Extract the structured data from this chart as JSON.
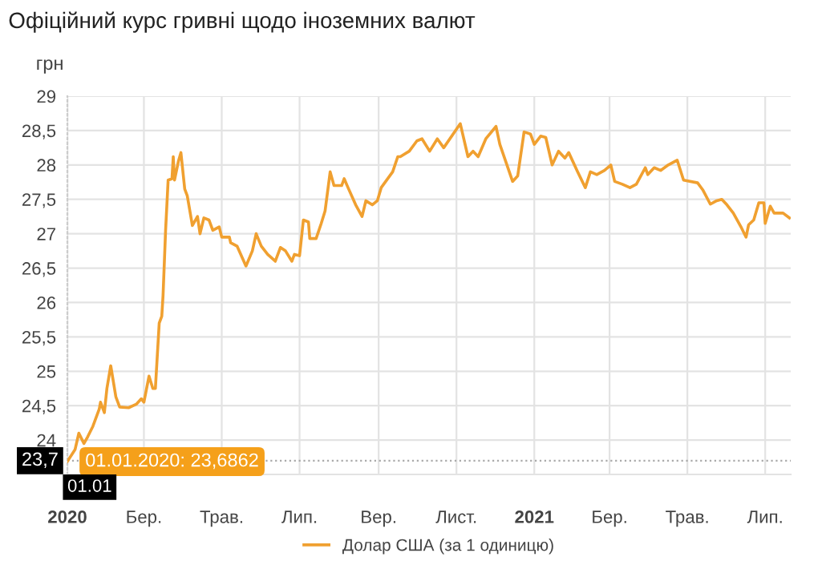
{
  "chart_data": {
    "type": "line",
    "title": "Офіційний курс гривні щодо іноземних валют",
    "ylabel": "грн",
    "x": [
      "2020-01-01",
      "2020-01-07",
      "2020-01-10",
      "2020-01-14",
      "2020-01-17",
      "2020-01-21",
      "2020-01-26",
      "2020-01-27",
      "2020-01-30",
      "2020-02-01",
      "2020-02-04",
      "2020-02-08",
      "2020-02-11",
      "2020-02-18",
      "2020-02-24",
      "2020-02-28",
      "2020-03-01",
      "2020-03-05",
      "2020-03-08",
      "2020-03-10",
      "2020-03-13",
      "2020-03-15",
      "2020-03-16",
      "2020-03-18",
      "2020-03-20",
      "2020-03-23",
      "2020-03-24",
      "2020-03-25",
      "2020-03-28",
      "2020-03-30",
      "2020-04-02",
      "2020-04-04",
      "2020-04-08",
      "2020-04-12",
      "2020-04-14",
      "2020-04-17",
      "2020-04-21",
      "2020-04-24",
      "2020-04-29",
      "2020-05-01",
      "2020-05-07",
      "2020-05-08",
      "2020-05-13",
      "2020-05-20",
      "2020-05-25",
      "2020-05-28",
      "2020-06-01",
      "2020-06-06",
      "2020-06-12",
      "2020-06-16",
      "2020-06-20",
      "2020-06-25",
      "2020-06-27",
      "2020-07-01",
      "2020-07-04",
      "2020-07-08",
      "2020-07-09",
      "2020-07-14",
      "2020-07-18",
      "2020-07-21",
      "2020-07-25",
      "2020-07-28",
      "2020-08-03",
      "2020-08-05",
      "2020-08-08",
      "2020-08-14",
      "2020-08-19",
      "2020-08-22",
      "2020-08-27",
      "2020-08-31",
      "2020-09-03",
      "2020-09-12",
      "2020-09-16",
      "2020-09-18",
      "2020-09-25",
      "2020-10-01",
      "2020-10-05",
      "2020-10-11",
      "2020-10-17",
      "2020-10-22",
      "2020-11-04",
      "2020-11-10",
      "2020-11-14",
      "2020-11-18",
      "2020-11-24",
      "2020-12-02",
      "2020-12-05",
      "2020-12-15",
      "2020-12-19",
      "2020-12-24",
      "2020-12-29",
      "2021-01-01",
      "2021-01-06",
      "2021-01-10",
      "2021-01-15",
      "2021-01-20",
      "2021-01-25",
      "2021-01-28",
      "2021-02-04",
      "2021-02-10",
      "2021-02-14",
      "2021-02-19",
      "2021-02-25",
      "2021-03-02",
      "2021-03-05",
      "2021-03-11",
      "2021-03-17",
      "2021-03-22",
      "2021-03-29",
      "2021-03-31",
      "2021-04-05",
      "2021-04-10",
      "2021-04-16",
      "2021-04-23",
      "2021-04-28",
      "2021-05-09",
      "2021-05-13",
      "2021-05-19",
      "2021-05-24",
      "2021-05-28",
      "2021-06-01",
      "2021-06-06",
      "2021-06-12",
      "2021-06-16",
      "2021-06-18",
      "2021-06-22",
      "2021-06-26",
      "2021-06-30",
      "2021-07-01",
      "2021-07-05",
      "2021-07-08",
      "2021-07-15",
      "2021-07-20"
    ],
    "series": [
      {
        "name": "Долар США (за 1 одиницю)",
        "color": "#f0a030",
        "values": [
          23.69,
          23.86,
          24.1,
          23.95,
          24.05,
          24.2,
          24.45,
          24.55,
          24.4,
          24.75,
          25.08,
          24.63,
          24.48,
          24.47,
          24.52,
          24.6,
          24.55,
          24.93,
          24.75,
          24.75,
          25.7,
          25.8,
          26.1,
          27.05,
          27.78,
          27.8,
          28.12,
          27.78,
          28.05,
          28.18,
          27.65,
          27.55,
          27.12,
          27.25,
          27.0,
          27.23,
          27.2,
          27.05,
          27.1,
          26.95,
          26.95,
          26.87,
          26.82,
          26.53,
          26.75,
          27.0,
          26.82,
          26.7,
          26.6,
          26.8,
          26.75,
          26.6,
          26.7,
          26.68,
          27.2,
          27.17,
          26.93,
          26.93,
          27.15,
          27.33,
          27.9,
          27.7,
          27.7,
          27.8,
          27.67,
          27.42,
          27.25,
          27.48,
          27.42,
          27.48,
          27.67,
          27.9,
          28.12,
          28.12,
          28.2,
          28.35,
          28.38,
          28.2,
          28.38,
          28.25,
          28.6,
          28.12,
          28.2,
          28.12,
          28.38,
          28.56,
          28.3,
          27.76,
          27.84,
          28.48,
          28.45,
          28.3,
          28.42,
          28.4,
          28.0,
          28.2,
          28.1,
          28.18,
          27.9,
          27.67,
          27.9,
          27.86,
          27.92,
          28.0,
          27.76,
          27.72,
          27.67,
          27.72,
          27.96,
          27.86,
          27.96,
          27.92,
          28.0,
          28.07,
          27.78,
          27.74,
          27.64,
          27.43,
          27.48,
          27.5,
          27.42,
          27.3,
          27.1,
          26.95,
          27.13,
          27.2,
          27.45,
          27.45,
          27.15,
          27.4,
          27.3,
          27.3,
          27.23
        ]
      }
    ],
    "xlim": [
      "2020-01-01",
      "2021-07-21"
    ],
    "xticks": [
      {
        "value": "2020-01-01",
        "label": "2020"
      },
      {
        "value": "2020-03-01",
        "label": "Бер."
      },
      {
        "value": "2020-05-01",
        "label": "Трав."
      },
      {
        "value": "2020-07-01",
        "label": "Лип."
      },
      {
        "value": "2020-09-01",
        "label": "Вер."
      },
      {
        "value": "2020-11-01",
        "label": "Лист."
      },
      {
        "value": "2021-01-01",
        "label": "2021"
      },
      {
        "value": "2021-03-01",
        "label": "Бер."
      },
      {
        "value": "2021-05-01",
        "label": "Трав."
      },
      {
        "value": "2021-07-01",
        "label": "Лип."
      }
    ],
    "ylim": [
      23.5,
      29
    ],
    "yticks": [
      24,
      {
        "value": 24.5,
        "label": "24,5"
      },
      25,
      {
        "value": 25.5,
        "label": "25,5"
      },
      26,
      {
        "value": 26.5,
        "label": "26,5"
      },
      27,
      {
        "value": 27.5,
        "label": "27,5"
      },
      28,
      {
        "value": 28.5,
        "label": "28,5"
      },
      29
    ],
    "grid": true,
    "legend": "bottom",
    "marker": "none",
    "line_style": "solid",
    "ref_lines": [
      {
        "axis": "y",
        "value": 23.7,
        "label": "23,7",
        "color": "#aaaaaa",
        "line_style": "dotted"
      },
      {
        "axis": "x",
        "value": "2020-01-01",
        "label": "01.01",
        "color": "#cccccc",
        "line_style": "dotted"
      }
    ],
    "annotations": [
      {
        "text": "01.01.2020: 23,6862",
        "x": "2020-01-01",
        "y": 23.6862
      }
    ]
  }
}
